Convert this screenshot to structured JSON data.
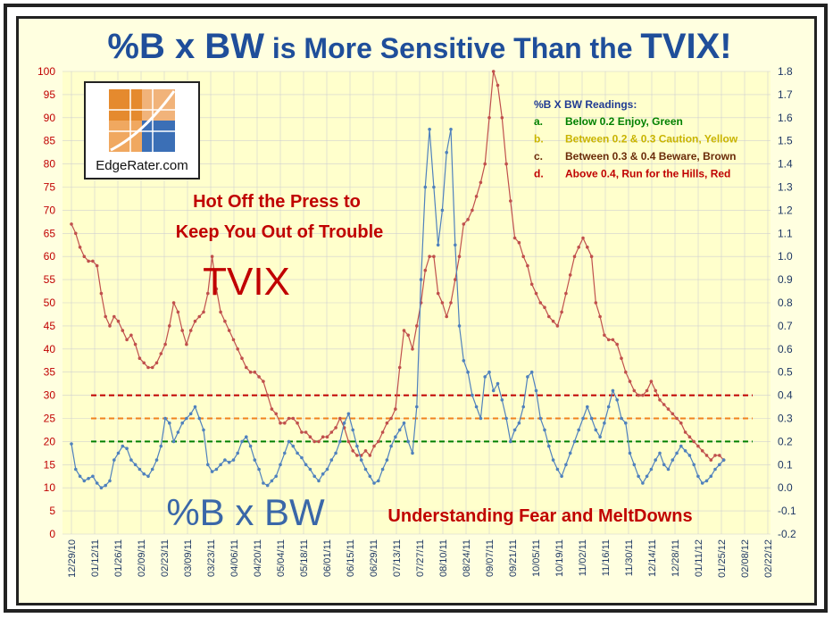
{
  "title": {
    "part1": "%B x BW",
    "part2": " is More Sensitive Than the ",
    "part3": "TVIX!"
  },
  "logo": {
    "text": "EdgeRater.com"
  },
  "annotations": {
    "hot_line1": "Hot Off the Press to",
    "hot_line2": "Keep You Out of Trouble",
    "tvix": "TVIX",
    "pctb": "%B x BW",
    "fear": "Understanding Fear and MeltDowns"
  },
  "legend": {
    "title": "%B X BW Readings:",
    "items": [
      {
        "key": "a.",
        "text": "Below 0.2 Enjoy, Green",
        "color": "#008000"
      },
      {
        "key": "b.",
        "text": "Between 0.2 & 0.3 Caution, Yellow",
        "color": "#c9b400"
      },
      {
        "key": "c.",
        "text": "Between 0.3 & 0.4 Beware, Brown",
        "color": "#6b2c0a"
      },
      {
        "key": "d.",
        "text": "Above 0.4, Run for the Hills, Red",
        "color": "#c00000"
      }
    ]
  },
  "colors": {
    "tvix": "#c0504d",
    "pctb": "#4f81bd",
    "left_axis": "#c00000",
    "right_axis": "#1f3864",
    "line_green": "#008000",
    "line_orange": "#f0821e",
    "line_red": "#c00000",
    "plot_bg": "#ffffcc",
    "grid": "#d0d0d0"
  },
  "chart_data": {
    "type": "line",
    "title": "%B x BW is More Sensitive Than the TVIX!",
    "x_tick_labels": [
      "12/29/10",
      "01/12/11",
      "01/26/11",
      "02/09/11",
      "02/23/11",
      "03/09/11",
      "03/23/11",
      "04/06/11",
      "04/20/11",
      "05/04/11",
      "05/18/11",
      "06/01/11",
      "06/15/11",
      "06/29/11",
      "07/13/11",
      "07/27/11",
      "08/10/11",
      "08/24/11",
      "09/07/11",
      "09/21/11",
      "10/05/11",
      "10/19/11",
      "11/02/11",
      "11/16/11",
      "11/30/11",
      "12/14/11",
      "12/28/11",
      "01/11/12",
      "01/25/12",
      "02/08/12",
      "02/22/12"
    ],
    "left_axis": {
      "ylim": [
        0,
        100
      ],
      "ticks": [
        0,
        5,
        10,
        15,
        20,
        25,
        30,
        35,
        40,
        45,
        50,
        55,
        60,
        65,
        70,
        75,
        80,
        85,
        90,
        95,
        100
      ]
    },
    "right_axis": {
      "ylim": [
        -0.2,
        1.8
      ],
      "ticks": [
        "-0.2",
        "-0.1",
        "0.0",
        "0.1",
        "0.2",
        "0.3",
        "0.4",
        "0.5",
        "0.6",
        "0.7",
        "0.8",
        "0.9",
        "1.0",
        "1.1",
        "1.2",
        "1.3",
        "1.4",
        "1.5",
        "1.6",
        "1.7",
        "1.8"
      ]
    },
    "threshold_lines": [
      {
        "value": 0.2,
        "axis": "right",
        "color": "#008000"
      },
      {
        "value": 0.3,
        "axis": "right",
        "color": "#f0821e"
      },
      {
        "value": 0.4,
        "axis": "right",
        "color": "#c00000"
      }
    ],
    "series": [
      {
        "name": "TVIX",
        "axis": "left",
        "color": "#c0504d",
        "x_start_index": 0,
        "x_end_index": 28.1,
        "values": [
          67,
          65,
          62,
          60,
          59,
          59,
          58,
          52,
          47,
          45,
          47,
          46,
          44,
          42,
          43,
          41,
          38,
          37,
          36,
          36,
          37,
          39,
          41,
          45,
          50,
          48,
          44,
          41,
          44,
          46,
          47,
          48,
          52,
          60,
          53,
          48,
          46,
          44,
          42,
          40,
          38,
          36,
          35,
          35,
          34,
          33,
          30,
          27,
          26,
          24,
          24,
          25,
          25,
          24,
          22,
          22,
          21,
          20,
          20,
          21,
          21,
          22,
          23,
          25,
          23,
          20,
          18,
          17,
          17,
          18,
          17,
          19,
          20,
          22,
          24,
          25,
          27,
          36,
          44,
          43,
          40,
          45,
          50,
          57,
          60,
          60,
          52,
          50,
          47,
          50,
          55,
          60,
          67,
          68,
          70,
          73,
          76,
          80,
          90,
          100,
          97,
          90,
          80,
          72,
          64,
          63,
          60,
          58,
          54,
          52,
          50,
          49,
          47,
          46,
          45,
          48,
          52,
          56,
          60,
          62,
          64,
          62,
          60,
          50,
          47,
          43,
          42,
          42,
          41,
          38,
          35,
          33,
          31,
          30,
          30,
          31,
          33,
          31,
          29,
          28,
          27,
          26,
          25,
          24,
          22,
          21,
          20,
          19,
          18,
          17,
          16,
          17,
          17,
          16
        ]
      },
      {
        "name": "%B x BW",
        "axis": "right",
        "color": "#4f81bd",
        "x_start_index": 0,
        "x_end_index": 28.1,
        "values": [
          0.19,
          0.08,
          0.05,
          0.03,
          0.04,
          0.05,
          0.02,
          0.0,
          0.01,
          0.03,
          0.12,
          0.15,
          0.18,
          0.17,
          0.12,
          0.1,
          0.08,
          0.06,
          0.05,
          0.08,
          0.12,
          0.18,
          0.3,
          0.28,
          0.2,
          0.24,
          0.28,
          0.3,
          0.32,
          0.35,
          0.3,
          0.25,
          0.1,
          0.07,
          0.08,
          0.1,
          0.12,
          0.11,
          0.12,
          0.15,
          0.2,
          0.22,
          0.18,
          0.12,
          0.08,
          0.02,
          0.01,
          0.03,
          0.05,
          0.1,
          0.15,
          0.2,
          0.18,
          0.15,
          0.13,
          0.1,
          0.08,
          0.05,
          0.03,
          0.06,
          0.08,
          0.12,
          0.15,
          0.2,
          0.28,
          0.32,
          0.25,
          0.18,
          0.12,
          0.08,
          0.05,
          0.02,
          0.03,
          0.08,
          0.12,
          0.18,
          0.22,
          0.25,
          0.28,
          0.2,
          0.15,
          0.35,
          0.9,
          1.3,
          1.55,
          1.3,
          1.05,
          1.2,
          1.45,
          1.55,
          1.05,
          0.7,
          0.55,
          0.5,
          0.4,
          0.35,
          0.3,
          0.48,
          0.5,
          0.42,
          0.45,
          0.38,
          0.3,
          0.2,
          0.25,
          0.28,
          0.35,
          0.48,
          0.5,
          0.42,
          0.3,
          0.25,
          0.18,
          0.12,
          0.08,
          0.05,
          0.1,
          0.15,
          0.2,
          0.25,
          0.3,
          0.35,
          0.3,
          0.25,
          0.22,
          0.28,
          0.35,
          0.42,
          0.38,
          0.3,
          0.28,
          0.15,
          0.1,
          0.05,
          0.02,
          0.05,
          0.08,
          0.12,
          0.15,
          0.1,
          0.08,
          0.12,
          0.15,
          0.18,
          0.16,
          0.14,
          0.1,
          0.05,
          0.02,
          0.03,
          0.05,
          0.08,
          0.1,
          0.12
        ]
      }
    ]
  }
}
